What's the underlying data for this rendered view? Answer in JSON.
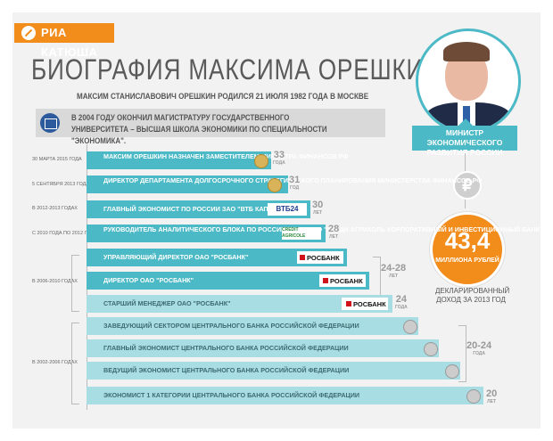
{
  "brand": {
    "name": "РИА КАТЮША"
  },
  "title": "БИОГРАФИЯ МАКСИМА ОРЕШКИНА",
  "subtitle": "МАКСИМ СТАНИСЛАВОВИЧ ОРЕШКИН РОДИЛСЯ 21 ИЮЛЯ 1982 ГОДА В МОСКВЕ",
  "education": "В 2004 ГОДУ ОКОНЧИЛ МАГИСТРАТУРУ ГОСУДАРСТВЕННОГО УНИВЕРСИТЕТА – ВЫСШАЯ ШКОЛА ЭКОНОМИКИ ПО СПЕЦИАЛЬНОСТИ \"ЭКОНОМИКА\".",
  "portrait": {
    "caption": "МИНИСТР ЭКОНОМИЧЕСКОГО РАЗВИТИЯ РОССИИ"
  },
  "ruble_symbol": "₽",
  "income": {
    "value": "43,4",
    "unit": "МИЛЛИОНА РУБЛЕЙ",
    "caption": "ДЕКЛАРИРОВАННЫЙ ДОХОД ЗА 2013 ГОД"
  },
  "timeline": {
    "dates": [
      "30 МАРТА 2015 ГОДА",
      "5 СЕНТЯБРЯ 2013 ГОДА",
      "В 2012-2013 ГОДАХ",
      "С 2010 ГОДА ПО 2012 ГОД",
      "В 2006-2010 ГОДАХ",
      "В 2002-2006 ГОДАХ"
    ],
    "entries": [
      {
        "text": "МАКСИМ ОРЕШКИН НАЗНАЧЕН ЗАМЕСТИТЕЛЕМ МИНИСТРА ФИНАНСОВ РФ",
        "age": "33",
        "age_unit": "ГОДА"
      },
      {
        "text": "ДИРЕКТОР ДЕПАРТАМЕНТА ДОЛГОСРОЧНОГО СТРАТЕГИЧЕСКОГО ПЛАНИРОВАНИЯ МИНИСТЕРСТВА ФИНАНСОВ РФ",
        "age": "31",
        "age_unit": "ГОД"
      },
      {
        "text": "ГЛАВНЫЙ ЭКОНОМИСТ ПО РОССИИ ЗАО \"ВТБ КАПИТАЛ\"",
        "logo": "ВТБ24",
        "age": "30",
        "age_unit": "ЛЕТ"
      },
      {
        "text": "РУКОВОДИТЕЛЬ АНАЛИТИЧЕСКОГО БЛОКА ПО РОССИИ И СНГ ЗАО \"КРЕДИ АГРИКОЛЬ КОРПОРАТИВНЫЙ И ИНВЕСТИЦИОННЫЙ БАНК\"",
        "logo": "CREDIT AGRICOLE",
        "age": "28",
        "age_unit": "ЛЕТ"
      },
      {
        "text": "УПРАВЛЯЮЩИЙ ДИРЕКТОР ОАО \"РОСБАНК\"",
        "logo": "РОСБАНК"
      },
      {
        "text": "ДИРЕКТОР ОАО \"РОСБАНК\"",
        "logo": "РОСБАНК"
      },
      {
        "text": "СТАРШИЙ МЕНЕДЖЕР ОАО \"РОСБАНК\"",
        "logo": "РОСБАНК",
        "age": "24",
        "age_unit": "ГОДА"
      },
      {
        "text": "ЗАВЕДУЮЩИЙ СЕКТОРОМ ЦЕНТРАЛЬНОГО БАНКА РОССИЙСКОЙ ФЕДЕРАЦИИ"
      },
      {
        "text": "ГЛАВНЫЙ ЭКОНОМИСТ ЦЕНТРАЛЬНОГО БАНКА РОССИЙСКОЙ ФЕДЕРАЦИИ"
      },
      {
        "text": "ВЕДУЩИЙ ЭКОНОМИСТ ЦЕНТРАЛЬНОГО БАНКА РОССИЙСКОЙ ФЕДЕРАЦИИ"
      },
      {
        "text": "ЭКОНОМИСТ 1 КАТЕГОРИИ ЦЕНТРАЛЬНОГО БАНКА РОССИЙСКОЙ ФЕДЕРАЦИИ",
        "age": "20",
        "age_unit": "ЛЕТ"
      }
    ],
    "group_ages": [
      {
        "age": "24-28",
        "age_unit": "ЛЕТ"
      },
      {
        "age": "20-24",
        "age_unit": "ГОДА"
      }
    ]
  }
}
